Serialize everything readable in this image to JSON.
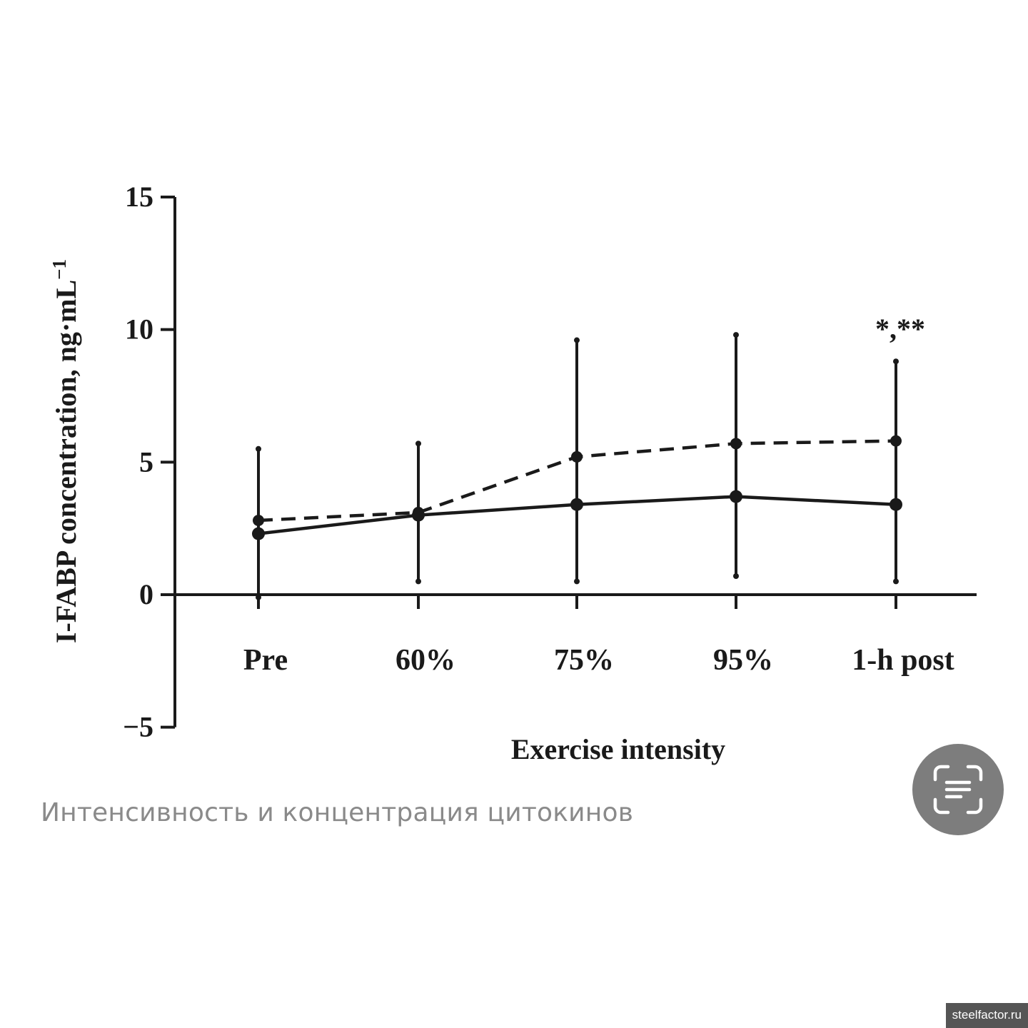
{
  "chart_data": {
    "type": "line",
    "categories": [
      "Pre",
      "60%",
      "75%",
      "95%",
      "1-h post"
    ],
    "series": [
      {
        "style": "solid",
        "values": [
          2.3,
          3.0,
          3.4,
          3.7,
          3.4
        ],
        "error_upper": [
          5.5,
          5.7,
          9.6,
          9.8,
          8.8
        ],
        "error_lower": [
          -0.1,
          0.5,
          0.5,
          0.7,
          0.5
        ]
      },
      {
        "style": "dashed",
        "values": [
          2.8,
          3.1,
          5.2,
          5.7,
          5.8
        ]
      }
    ],
    "title": "",
    "xlabel": "Exercise intensity",
    "ylabel": "I-FABP concentration, ng·mL",
    "ylabel_superscript": "−1",
    "ylim": [
      -5,
      15
    ],
    "yticks": [
      15,
      10,
      5,
      0,
      -5
    ],
    "ytick_labels": [
      "15",
      "10",
      "5",
      "0",
      "−5"
    ],
    "annotations": [
      {
        "category": "1-h post",
        "text": "*,**"
      }
    ],
    "grid": false,
    "line_color": "#1a1a1a"
  },
  "caption": "Интенсивность и концентрация цитокинов",
  "scan_button": {
    "icon": "text-scan-icon",
    "color": "#7d7d7d"
  },
  "watermark": "steelfactor.ru"
}
